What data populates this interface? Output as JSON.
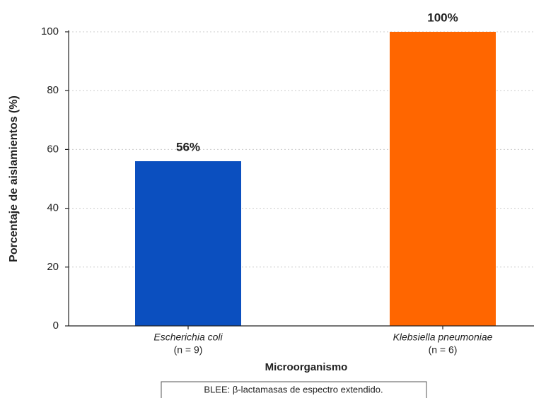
{
  "chart_data": {
    "type": "bar",
    "categories": [
      "Escherichia coli",
      "Klebsiella pneumoniae"
    ],
    "category_notes": [
      "(n = 9)",
      "(n = 6)"
    ],
    "values": [
      56,
      100
    ],
    "value_labels": [
      "56%",
      "100%"
    ],
    "colors": [
      "#0b4fbf",
      "#ff6600"
    ],
    "ylim": [
      0,
      100
    ],
    "yticks": [
      0,
      20,
      40,
      60,
      80,
      100
    ],
    "grid": true,
    "ylabel": "Porcentaje de aislamientos (%)",
    "xlabel": "Microorganismo",
    "footnote": "BLEE: β-lactamasas de espectro extendido."
  }
}
